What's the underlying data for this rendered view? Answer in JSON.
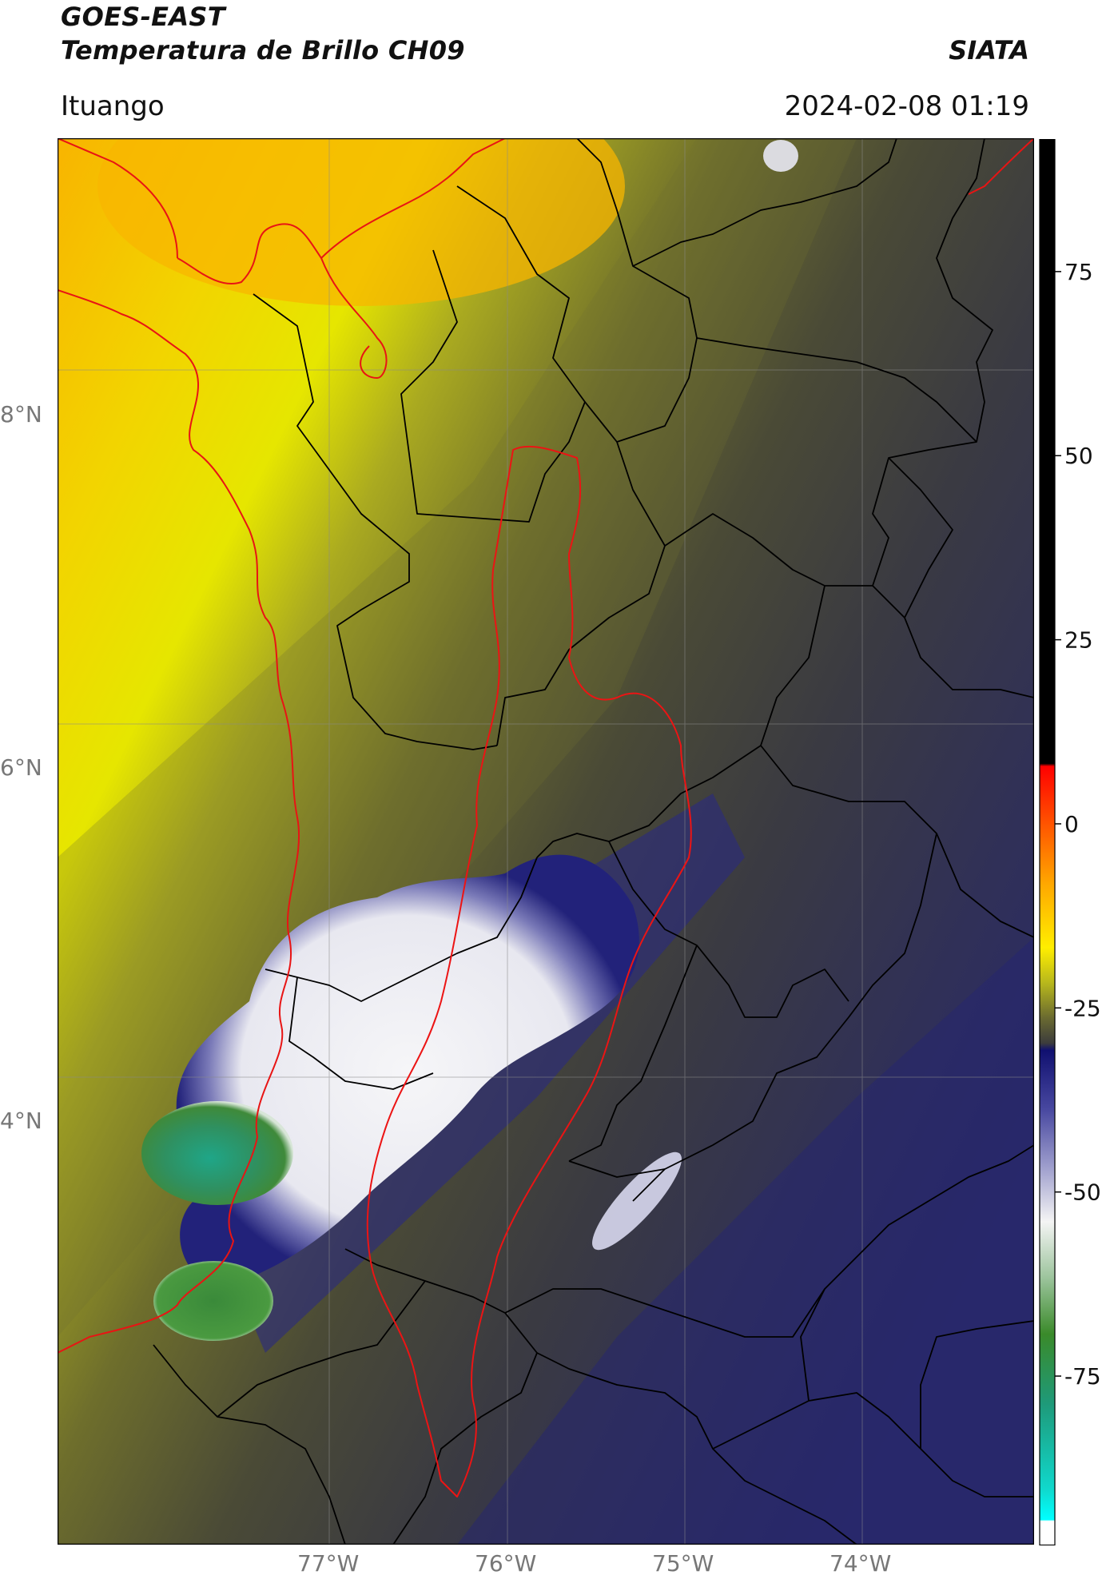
{
  "header": {
    "title_line1": "GOES-EAST",
    "title_line2": "Temperatura de Brillo CH09",
    "org": "SIATA",
    "location": "Ituango",
    "datetime": "2024-02-08 01:19"
  },
  "map": {
    "lat_labels": [
      "8°N",
      "6°N",
      "4°N"
    ],
    "lon_labels": [
      "77°W",
      "76°W",
      "75°W",
      "74°W"
    ],
    "colors": {
      "warm_yellow": "#f2f200",
      "orange": "#f9b200",
      "olive": "#6c6c2c",
      "dark_gray": "#3c3c3c",
      "navy": "#23237a",
      "white": "#f4f4f6",
      "green": "#3c8a3c",
      "teal": "#20a088",
      "region_outline": "#e81010",
      "border_outline": "#000000"
    }
  },
  "colorbar": {
    "ticks": [
      "75",
      "50",
      "25",
      "0",
      "-25",
      "-50",
      "-75"
    ],
    "tick_values": [
      75,
      50,
      25,
      0,
      -25,
      -50,
      -75
    ],
    "range": [
      -98,
      93
    ]
  }
}
